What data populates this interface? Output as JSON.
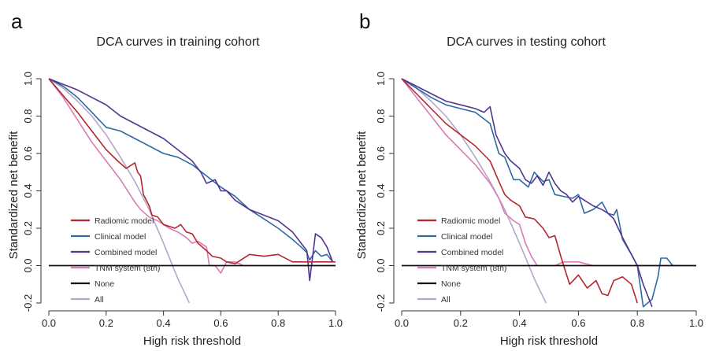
{
  "chart_data": [
    {
      "type": "line",
      "panel_label": "a",
      "title": "DCA curves in training cohort",
      "xlabel": "High risk threshold",
      "ylabel": "Standardized net benefit",
      "xlim": [
        0.0,
        1.0
      ],
      "ylim": [
        -0.2,
        1.0
      ],
      "xticks": [
        "0.0",
        "0.2",
        "0.4",
        "0.6",
        "0.8",
        "1.0"
      ],
      "yticks": [
        "1.0",
        "0.8",
        "0.6",
        "0.4",
        "0.2",
        "0.0",
        "-0.2"
      ],
      "legend_position": "bottom-left",
      "series": [
        {
          "name": "Radiomic model",
          "color": "#b0282e",
          "x": [
            0.0,
            0.05,
            0.1,
            0.15,
            0.2,
            0.24,
            0.27,
            0.3,
            0.31,
            0.32,
            0.33,
            0.35,
            0.36,
            0.38,
            0.4,
            0.42,
            0.44,
            0.46,
            0.48,
            0.5,
            0.52,
            0.55,
            0.57,
            0.6,
            0.62,
            0.65,
            0.7,
            0.75,
            0.8,
            0.85,
            0.9,
            0.95,
            1.0
          ],
          "y": [
            1.0,
            0.91,
            0.82,
            0.72,
            0.62,
            0.56,
            0.52,
            0.55,
            0.5,
            0.48,
            0.38,
            0.32,
            0.27,
            0.26,
            0.22,
            0.21,
            0.2,
            0.22,
            0.18,
            0.17,
            0.12,
            0.08,
            0.05,
            0.04,
            0.02,
            0.01,
            0.06,
            0.05,
            0.06,
            0.02,
            0.02,
            0.02,
            0.02
          ]
        },
        {
          "name": "Clinical model",
          "color": "#2e6aa3",
          "x": [
            0.0,
            0.05,
            0.1,
            0.15,
            0.2,
            0.25,
            0.3,
            0.35,
            0.4,
            0.45,
            0.5,
            0.55,
            0.6,
            0.65,
            0.7,
            0.75,
            0.8,
            0.85,
            0.88,
            0.9,
            0.91,
            0.93,
            0.95,
            0.97,
            0.99
          ],
          "y": [
            1.0,
            0.96,
            0.9,
            0.82,
            0.74,
            0.72,
            0.68,
            0.64,
            0.6,
            0.58,
            0.54,
            0.48,
            0.42,
            0.37,
            0.3,
            0.25,
            0.2,
            0.14,
            0.1,
            0.07,
            0.03,
            0.08,
            0.05,
            0.06,
            0.02
          ]
        },
        {
          "name": "Combined model",
          "color": "#53358f",
          "x": [
            0.0,
            0.05,
            0.1,
            0.15,
            0.2,
            0.25,
            0.3,
            0.35,
            0.4,
            0.45,
            0.5,
            0.53,
            0.55,
            0.58,
            0.6,
            0.62,
            0.65,
            0.7,
            0.75,
            0.8,
            0.85,
            0.88,
            0.9,
            0.91,
            0.93,
            0.95,
            0.97,
            0.99
          ],
          "y": [
            1.0,
            0.97,
            0.94,
            0.9,
            0.86,
            0.8,
            0.76,
            0.72,
            0.68,
            0.62,
            0.56,
            0.5,
            0.44,
            0.46,
            0.4,
            0.4,
            0.35,
            0.3,
            0.27,
            0.24,
            0.18,
            0.12,
            0.08,
            -0.08,
            0.17,
            0.15,
            0.1,
            0.02
          ]
        },
        {
          "name": "TNM system (8th)",
          "color": "#d97bb6",
          "x": [
            0.0,
            0.05,
            0.1,
            0.15,
            0.2,
            0.25,
            0.3,
            0.32,
            0.35,
            0.38,
            0.4,
            0.42,
            0.45,
            0.48,
            0.5,
            0.52,
            0.55,
            0.56,
            0.58,
            0.6,
            0.62,
            0.65,
            0.68,
            0.7,
            0.75,
            0.8,
            0.85,
            0.9,
            0.95,
            1.0
          ],
          "y": [
            1.0,
            0.9,
            0.78,
            0.66,
            0.56,
            0.46,
            0.34,
            0.3,
            0.26,
            0.24,
            0.22,
            0.2,
            0.18,
            0.15,
            0.12,
            0.13,
            0.1,
            0.0,
            0.0,
            -0.04,
            0.02,
            0.02,
            0.0,
            0.0,
            0.0,
            0.0,
            0.0,
            0.0,
            0.0,
            0.0
          ]
        },
        {
          "name": "None",
          "color": "#111111",
          "x": [
            0.0,
            1.0
          ],
          "y": [
            0.0,
            0.0
          ]
        },
        {
          "name": "All",
          "color": "#b7a6c9",
          "x": [
            0.0,
            0.05,
            0.1,
            0.15,
            0.2,
            0.25,
            0.3,
            0.35,
            0.4,
            0.45,
            0.49
          ],
          "y": [
            1.0,
            0.95,
            0.88,
            0.8,
            0.7,
            0.58,
            0.45,
            0.3,
            0.12,
            -0.07,
            -0.2
          ]
        }
      ]
    },
    {
      "type": "line",
      "panel_label": "b",
      "title": "DCA curves in testing cohort",
      "xlabel": "High risk threshold",
      "ylabel": "Standardized net benefit",
      "xlim": [
        0.0,
        1.0
      ],
      "ylim": [
        -0.2,
        1.0
      ],
      "xticks": [
        "0.0",
        "0.2",
        "0.4",
        "0.6",
        "0.8",
        "1.0"
      ],
      "yticks": [
        "1.0",
        "0.8",
        "0.6",
        "0.4",
        "0.2",
        "0.0",
        "-0.2"
      ],
      "legend_position": "bottom-left",
      "series": [
        {
          "name": "Radiomic model",
          "color": "#b0282e",
          "x": [
            0.0,
            0.05,
            0.1,
            0.15,
            0.2,
            0.25,
            0.3,
            0.33,
            0.35,
            0.37,
            0.4,
            0.42,
            0.45,
            0.48,
            0.5,
            0.52,
            0.54,
            0.55,
            0.57,
            0.6,
            0.63,
            0.66,
            0.68,
            0.7,
            0.72,
            0.75,
            0.78,
            0.8
          ],
          "y": [
            1.0,
            0.92,
            0.84,
            0.76,
            0.7,
            0.64,
            0.56,
            0.45,
            0.38,
            0.35,
            0.32,
            0.26,
            0.25,
            0.2,
            0.15,
            0.16,
            0.05,
            0.0,
            -0.1,
            -0.05,
            -0.12,
            -0.08,
            -0.15,
            -0.16,
            -0.08,
            -0.06,
            -0.1,
            -0.2
          ]
        },
        {
          "name": "Clinical model",
          "color": "#2e6aa3",
          "x": [
            0.0,
            0.05,
            0.1,
            0.15,
            0.2,
            0.25,
            0.3,
            0.33,
            0.35,
            0.38,
            0.4,
            0.43,
            0.45,
            0.48,
            0.5,
            0.52,
            0.55,
            0.58,
            0.6,
            0.62,
            0.65,
            0.68,
            0.7,
            0.72,
            0.73,
            0.75,
            0.78,
            0.8,
            0.82,
            0.85,
            0.87,
            0.88,
            0.9,
            0.92,
            0.94
          ],
          "y": [
            1.0,
            0.95,
            0.9,
            0.86,
            0.84,
            0.82,
            0.76,
            0.6,
            0.58,
            0.46,
            0.46,
            0.42,
            0.5,
            0.45,
            0.46,
            0.38,
            0.37,
            0.36,
            0.38,
            0.28,
            0.3,
            0.34,
            0.28,
            0.27,
            0.3,
            0.14,
            0.06,
            0.0,
            -0.22,
            -0.18,
            -0.06,
            0.04,
            0.04,
            0.0,
            0.0
          ]
        },
        {
          "name": "Combined model",
          "color": "#53358f",
          "x": [
            0.0,
            0.05,
            0.1,
            0.15,
            0.2,
            0.25,
            0.28,
            0.3,
            0.32,
            0.35,
            0.37,
            0.4,
            0.42,
            0.44,
            0.46,
            0.48,
            0.5,
            0.52,
            0.54,
            0.56,
            0.58,
            0.6,
            0.62,
            0.65,
            0.68,
            0.7,
            0.72,
            0.75,
            0.78,
            0.8,
            0.82,
            0.85
          ],
          "y": [
            1.0,
            0.96,
            0.92,
            0.88,
            0.86,
            0.84,
            0.82,
            0.85,
            0.7,
            0.6,
            0.56,
            0.52,
            0.46,
            0.44,
            0.48,
            0.43,
            0.5,
            0.44,
            0.4,
            0.38,
            0.34,
            0.37,
            0.35,
            0.32,
            0.3,
            0.28,
            0.25,
            0.15,
            0.06,
            0.0,
            -0.1,
            -0.22
          ]
        },
        {
          "name": "TNM system (8th)",
          "color": "#d97bb6",
          "x": [
            0.0,
            0.05,
            0.1,
            0.15,
            0.2,
            0.25,
            0.3,
            0.33,
            0.35,
            0.38,
            0.4,
            0.42,
            0.44,
            0.46,
            0.48,
            0.5,
            0.52,
            0.55,
            0.57,
            0.6,
            0.65,
            0.7,
            0.75,
            0.8,
            0.85,
            0.9,
            0.95,
            1.0
          ],
          "y": [
            1.0,
            0.9,
            0.8,
            0.7,
            0.62,
            0.54,
            0.44,
            0.36,
            0.28,
            0.24,
            0.22,
            0.12,
            0.05,
            0.0,
            0.0,
            0.0,
            0.0,
            0.02,
            0.02,
            0.02,
            0.0,
            0.0,
            0.0,
            0.0,
            0.0,
            0.0,
            0.0,
            0.0
          ]
        },
        {
          "name": "None",
          "color": "#111111",
          "x": [
            0.0,
            1.0
          ],
          "y": [
            0.0,
            0.0
          ]
        },
        {
          "name": "All",
          "color": "#b7a6c9",
          "x": [
            0.0,
            0.05,
            0.1,
            0.15,
            0.2,
            0.25,
            0.3,
            0.35,
            0.4,
            0.45,
            0.49
          ],
          "y": [
            1.0,
            0.95,
            0.88,
            0.8,
            0.7,
            0.58,
            0.45,
            0.3,
            0.12,
            -0.07,
            -0.2
          ]
        }
      ]
    }
  ]
}
